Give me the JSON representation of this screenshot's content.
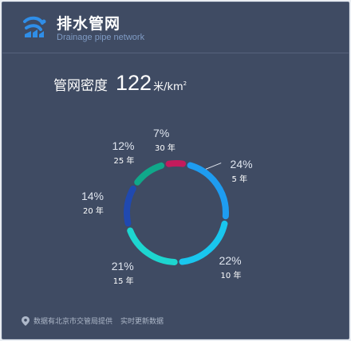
{
  "header": {
    "title": "排水管网",
    "subtitle": "Drainage pipe network",
    "logo_icon": "drainage-pipe-icon"
  },
  "density": {
    "label": "管网密度",
    "value": "122",
    "unit": "米/km",
    "unit_sup": "2"
  },
  "chart_data": {
    "type": "pie",
    "categories": [
      "5 年",
      "10 年",
      "15 年",
      "20 年",
      "25 年",
      "30 年"
    ],
    "values": [
      24,
      22,
      21,
      14,
      12,
      7
    ],
    "labels": [
      "24%",
      "22%",
      "21%",
      "14%",
      "12%",
      "7%"
    ],
    "colors": [
      "#1e9cf0",
      "#19c6ee",
      "#1dd6d0",
      "#2049b0",
      "#10a88a",
      "#c41b5c"
    ]
  },
  "footer": {
    "note": "数据有北京市交管局提供",
    "note2": "实时更新数据",
    "pin_icon": "location-pin-icon"
  },
  "colors": {
    "panel_bg": "#3f4b63",
    "accent": "#2f8ee8",
    "subtitle": "#7f9bc4"
  }
}
